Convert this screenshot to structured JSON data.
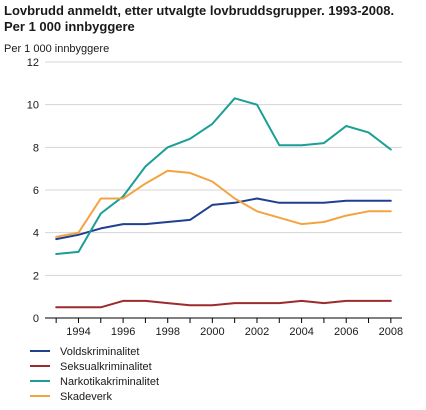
{
  "title_line1": "Lovbrudd anmeldt, etter utvalgte lovbruddsgrupper. 1993-2008.",
  "title_line2": "Per 1 000 innbyggere",
  "chart_data": {
    "type": "line",
    "title": "Lovbrudd anmeldt, etter utvalgte lovbruddsgrupper. 1993-2008. Per 1 000 innbyggere",
    "ylabel": "Per 1 000 innbyggere",
    "xlabel": "",
    "x": [
      1993,
      1994,
      1995,
      1996,
      1997,
      1998,
      1999,
      2000,
      2001,
      2002,
      2003,
      2004,
      2005,
      2006,
      2007,
      2008
    ],
    "xticks": [
      "1994",
      "1996",
      "1998",
      "2000",
      "2002",
      "2004",
      "2006",
      "2008"
    ],
    "xtick_values": [
      1994,
      1996,
      1998,
      2000,
      2002,
      2004,
      2006,
      2008
    ],
    "yticks": [
      "0",
      "2",
      "4",
      "6",
      "8",
      "10",
      "12"
    ],
    "ytick_values": [
      0,
      2,
      4,
      6,
      8,
      10,
      12
    ],
    "xlim": [
      1992.5,
      2008.5
    ],
    "ylim": [
      0,
      12
    ],
    "grid": true,
    "legend_position": "bottom",
    "series": [
      {
        "name": "Voldskriminalitet",
        "color": "#1f3f8f",
        "values": [
          3.7,
          3.9,
          4.2,
          4.4,
          4.4,
          4.5,
          4.6,
          5.3,
          5.4,
          5.6,
          5.4,
          5.4,
          5.4,
          5.5,
          5.5,
          5.5
        ]
      },
      {
        "name": "Seksualkriminalitet",
        "color": "#9c2b2b",
        "values": [
          0.5,
          0.5,
          0.5,
          0.8,
          0.8,
          0.7,
          0.6,
          0.6,
          0.7,
          0.7,
          0.7,
          0.8,
          0.7,
          0.8,
          0.8,
          0.8
        ]
      },
      {
        "name": "Narkotikakriminalitet",
        "color": "#1a9e96",
        "values": [
          3.0,
          3.1,
          4.9,
          5.7,
          7.1,
          8.0,
          8.4,
          9.1,
          10.3,
          10.0,
          8.1,
          8.1,
          8.2,
          9.0,
          8.7,
          7.9
        ]
      },
      {
        "name": "Skadeverk",
        "color": "#f4a340",
        "values": [
          3.8,
          4.0,
          5.6,
          5.6,
          6.3,
          6.9,
          6.8,
          6.4,
          5.6,
          5.0,
          4.7,
          4.4,
          4.5,
          4.8,
          5.0,
          5.0
        ]
      }
    ]
  }
}
